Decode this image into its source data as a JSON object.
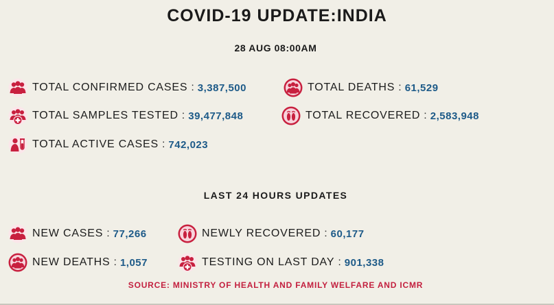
{
  "header": {
    "title": "COVID-19 UPDATE:INDIA",
    "date": "28 AUG 08:00AM"
  },
  "overall": {
    "confirmed": {
      "label": "TOTAL CONFIRMED CASES",
      "separator": ":",
      "value": "3,387,500",
      "icon": "people-group-icon"
    },
    "deaths": {
      "label": "TOTAL DEATHS",
      "separator": ":",
      "value": "61,529",
      "icon": "people-circle-icon"
    },
    "tested": {
      "label": "TOTAL SAMPLES TESTED",
      "separator": ":",
      "value": "39,477,848",
      "icon": "people-medical-icon"
    },
    "recovered": {
      "label": "TOTAL RECOVERED",
      "separator": ":",
      "value": "2,583,948",
      "icon": "footprints-icon"
    },
    "active": {
      "label": "TOTAL ACTIVE CASES",
      "separator": ":",
      "value": "742,023",
      "icon": "person-test-tube-icon"
    }
  },
  "last24": {
    "heading": "LAST 24 HOURS UPDATES",
    "new_cases": {
      "label": "NEW CASES",
      "separator": ":",
      "value": "77,266",
      "icon": "people-group-icon"
    },
    "newly_recovered": {
      "label": "NEWLY RECOVERED",
      "separator": ":",
      "value": "60,177",
      "icon": "footprints-icon"
    },
    "new_deaths": {
      "label": "NEW DEATHS",
      "separator": ":",
      "value": "1,057",
      "icon": "people-circle-icon"
    },
    "testing_last_day": {
      "label": "TESTING ON LAST DAY",
      "separator": ":",
      "value": "901,338",
      "icon": "people-medical-icon"
    }
  },
  "footer": {
    "source": "SOURCE: MINISTRY OF HEALTH AND FAMILY WELFARE AND ICMR"
  },
  "colors": {
    "background": "#f1efe7",
    "icon_red": "#c8203f",
    "value_blue": "#1d5a88",
    "source_red": "#c3203f"
  }
}
